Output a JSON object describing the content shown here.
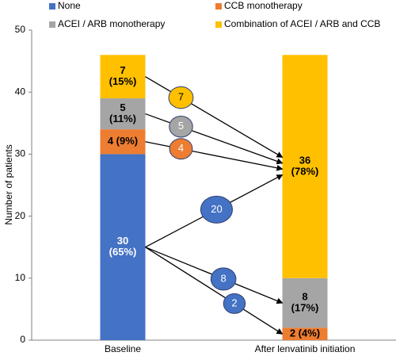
{
  "chart_data": {
    "type": "stacked_bar",
    "y_label": "Number of patients",
    "categories": [
      "Baseline",
      "After lenvatinib initiation"
    ],
    "series": [
      {
        "name": "None",
        "color": "#4472c4",
        "values": [
          30,
          0
        ],
        "value_labels": [
          [
            "30",
            "(65%)"
          ],
          null
        ]
      },
      {
        "name": "CCB monotherapy",
        "color": "#ed7d31",
        "values": [
          4,
          2
        ],
        "value_labels": [
          "4 (9%)",
          "2 (4%)"
        ]
      },
      {
        "name": "ACEI / ARB monotherapy",
        "color": "#a5a5a5",
        "values": [
          5,
          8
        ],
        "value_labels": [
          [
            "5",
            "(11%)"
          ],
          [
            "8",
            "(17%)"
          ]
        ]
      },
      {
        "name": "Combination of ACEI / ARB and CCB",
        "color": "#ffc000",
        "values": [
          7,
          36
        ],
        "value_labels": [
          [
            "7",
            "(15%)"
          ],
          [
            "36",
            "(78%)"
          ]
        ]
      }
    ],
    "flows": [
      {
        "from": "Combination of ACEI / ARB and CCB",
        "to": "Combination of ACEI / ARB and CCB",
        "value": 7
      },
      {
        "from": "ACEI / ARB monotherapy",
        "to": "Combination of ACEI / ARB and CCB",
        "value": 5
      },
      {
        "from": "CCB monotherapy",
        "to": "Combination of ACEI / ARB and CCB",
        "value": 4
      },
      {
        "from": "None",
        "to": "Combination of ACEI / ARB and CCB",
        "value": 20
      },
      {
        "from": "None",
        "to": "ACEI / ARB monotherapy",
        "value": 8
      },
      {
        "from": "None",
        "to": "CCB monotherapy",
        "value": 2
      }
    ],
    "ylim": [
      0,
      50
    ],
    "yticks": [
      0,
      10,
      20,
      30,
      40,
      50
    ],
    "legend": "top"
  }
}
